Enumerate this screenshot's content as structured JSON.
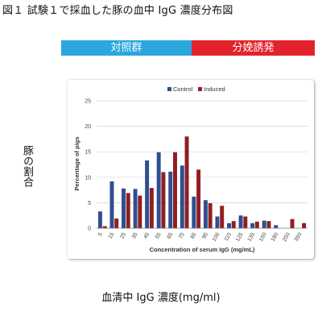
{
  "figure_title": "図１ 試験１で採血した豚の血中 IgG 濃度分布図",
  "bands": {
    "control": "対照群",
    "induced": "分娩誘発"
  },
  "outer_ylabel": "豚の割合",
  "outer_xlabel": "血清中 IgG 濃度(mg/ml)",
  "colors": {
    "control_band": "#2aa7dd",
    "induced_band": "#e3232c",
    "control_bar": "#2e4f8f",
    "induced_bar": "#8e1f24"
  },
  "chart_data": {
    "type": "bar",
    "xlabel": "Concentration of serum IgG (mg/mL)",
    "ylabel": "Percentage of pigs",
    "ylim": [
      0,
      25
    ],
    "yticks": [
      0,
      5,
      10,
      15,
      20,
      25
    ],
    "legend_position": "top-left",
    "categories": [
      "5",
      "15",
      "25",
      "35",
      "45",
      "55",
      "65",
      "75",
      "85",
      "95",
      "105",
      "115",
      "125",
      "135",
      "150",
      "180",
      "250",
      "350"
    ],
    "series": [
      {
        "name": "Control",
        "values": [
          3.3,
          9.2,
          7.8,
          7.7,
          13.3,
          14.9,
          11.1,
          12.3,
          6.2,
          5.5,
          2.3,
          1.0,
          2.5,
          1.0,
          1.5,
          0.6,
          0.0,
          0.0
        ]
      },
      {
        "name": "Induced",
        "values": [
          0.4,
          1.9,
          6.9,
          6.4,
          7.9,
          11.0,
          14.9,
          18.0,
          11.5,
          4.9,
          4.4,
          1.4,
          2.3,
          1.3,
          1.4,
          0.0,
          1.8,
          1.0
        ]
      }
    ]
  }
}
